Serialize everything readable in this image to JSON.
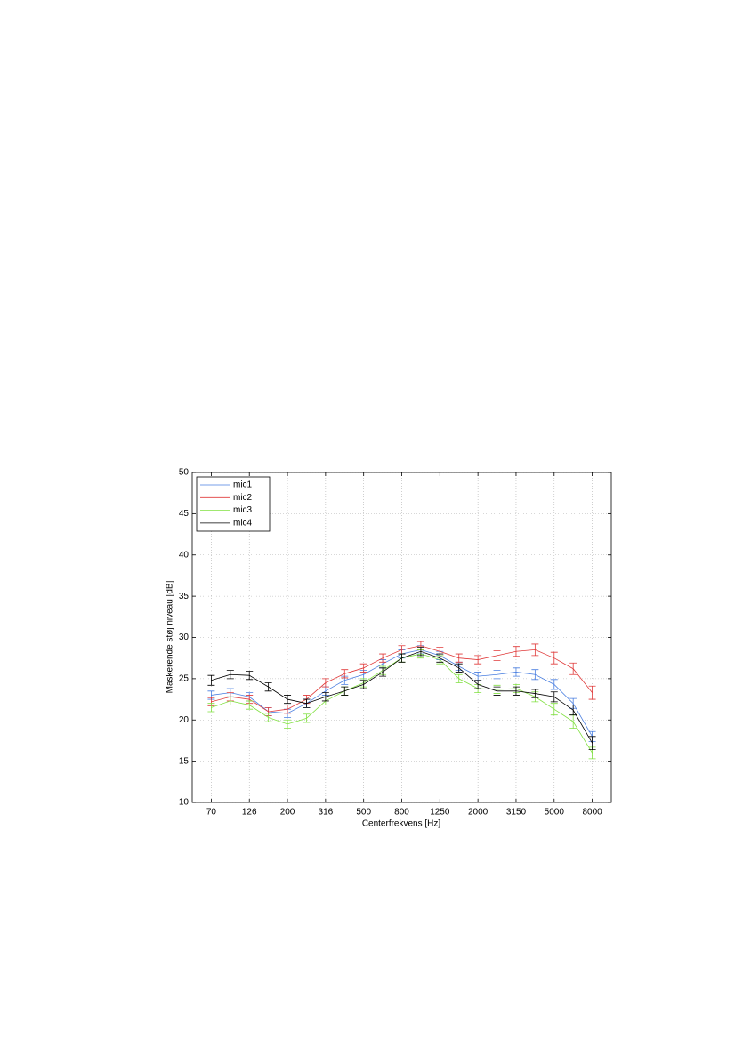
{
  "chart_data": {
    "type": "line",
    "xlabel": "Centerfrekvens [Hz]",
    "ylabel": "Maskerende støj niveau [dB]",
    "categories": [
      "70",
      null,
      "126",
      null,
      "200",
      null,
      "316",
      null,
      "500",
      null,
      "800",
      null,
      "1250",
      null,
      "2000",
      null,
      "3150",
      null,
      "5000",
      null,
      "8000"
    ],
    "ylim": [
      10,
      50
    ],
    "yticks": [
      10,
      15,
      20,
      25,
      30,
      35,
      40,
      45,
      50
    ],
    "grid": true,
    "legend": "upper left",
    "series": [
      {
        "name": "mic1",
        "color": "#4a7fe0",
        "values": [
          23.0,
          23.3,
          22.8,
          21.0,
          20.8,
          22.0,
          23.5,
          24.8,
          25.5,
          26.8,
          28.0,
          28.5,
          27.8,
          26.5,
          25.3,
          25.5,
          25.8,
          25.5,
          24.3,
          22.0,
          18.0
        ],
        "errors": [
          0.5,
          0.5,
          0.5,
          0.5,
          0.5,
          0.5,
          0.5,
          0.5,
          0.5,
          0.5,
          0.5,
          0.5,
          0.5,
          0.5,
          0.5,
          0.5,
          0.5,
          0.6,
          0.6,
          0.6,
          0.6
        ]
      },
      {
        "name": "mic2",
        "color": "#e03a3a",
        "values": [
          22.2,
          22.8,
          22.5,
          21.0,
          21.3,
          22.5,
          24.5,
          25.6,
          26.3,
          27.5,
          28.5,
          29.0,
          28.3,
          27.5,
          27.3,
          27.8,
          28.3,
          28.5,
          27.5,
          26.2,
          23.3
        ],
        "errors": [
          0.5,
          0.5,
          0.5,
          0.5,
          0.5,
          0.5,
          0.5,
          0.5,
          0.5,
          0.5,
          0.5,
          0.5,
          0.5,
          0.5,
          0.5,
          0.6,
          0.6,
          0.7,
          0.7,
          0.7,
          0.8
        ]
      },
      {
        "name": "mic3",
        "color": "#80e040",
        "values": [
          21.5,
          22.3,
          21.8,
          20.3,
          19.5,
          20.2,
          22.3,
          23.5,
          24.5,
          26.0,
          27.5,
          28.0,
          27.3,
          25.0,
          23.8,
          23.7,
          23.8,
          22.8,
          21.3,
          19.8,
          16.0
        ],
        "errors": [
          0.5,
          0.5,
          0.5,
          0.5,
          0.5,
          0.5,
          0.5,
          0.5,
          0.5,
          0.5,
          0.5,
          0.5,
          0.5,
          0.5,
          0.5,
          0.5,
          0.5,
          0.6,
          0.7,
          0.8,
          0.7
        ]
      },
      {
        "name": "mic4",
        "color": "#000000",
        "values": [
          24.8,
          25.5,
          25.4,
          24.0,
          22.5,
          22.0,
          22.8,
          23.5,
          24.3,
          25.8,
          27.5,
          28.3,
          27.5,
          26.3,
          24.3,
          23.5,
          23.5,
          23.2,
          22.8,
          21.2,
          17.2
        ],
        "errors": [
          0.6,
          0.5,
          0.5,
          0.5,
          0.5,
          0.5,
          0.5,
          0.5,
          0.5,
          0.5,
          0.5,
          0.5,
          0.5,
          0.5,
          0.5,
          0.5,
          0.5,
          0.5,
          0.6,
          0.6,
          0.8
        ]
      }
    ]
  }
}
